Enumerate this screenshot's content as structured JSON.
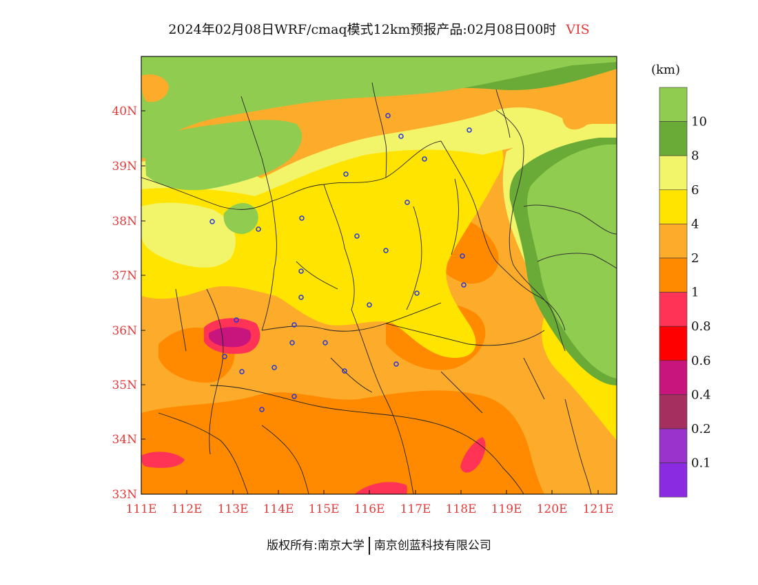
{
  "title": {
    "main": "2024年02月08日WRF/cmaq模式12km预报产品:02月08日00时",
    "variable": "VIS"
  },
  "map": {
    "lat_labels": [
      "40N",
      "39N",
      "38N",
      "37N",
      "36N",
      "35N",
      "34N",
      "33N"
    ],
    "lon_labels": [
      "111E",
      "112E",
      "113E",
      "114E",
      "115E",
      "116E",
      "117E",
      "118E",
      "119E",
      "120E",
      "121E"
    ],
    "axis_label_color": "#e03a3a",
    "city_marker_color": "#2233dd"
  },
  "legend": {
    "unit": "(km)",
    "items": [
      {
        "label": "10",
        "color": "#90cc50"
      },
      {
        "label": "8",
        "color": "#6aab38"
      },
      {
        "label": "6",
        "color": "#f2f56a"
      },
      {
        "label": "4",
        "color": "#ffe400"
      },
      {
        "label": "2",
        "color": "#fcac2a"
      },
      {
        "label": "1",
        "color": "#ff8a00"
      },
      {
        "label": "0.8",
        "color": "#ff3355"
      },
      {
        "label": "0.6",
        "color": "#ff0000"
      },
      {
        "label": "0.4",
        "color": "#c8157e"
      },
      {
        "label": "0.2",
        "color": "#a52f5e"
      },
      {
        "label": "0.1",
        "color": "#9933cc"
      },
      {
        "label": "",
        "color": "#8a2be2"
      }
    ]
  },
  "footer": {
    "copyright": "版权所有:南京大学",
    "company": "南京创蓝科技有限公司"
  }
}
